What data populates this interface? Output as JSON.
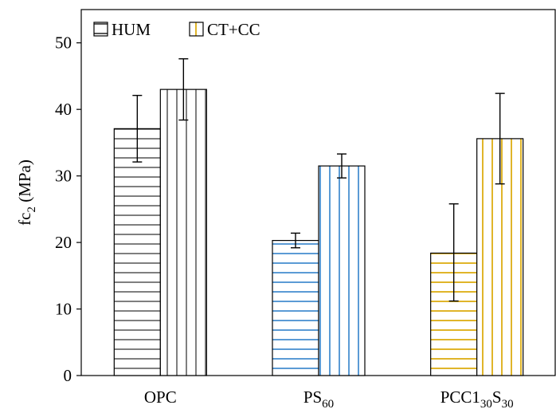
{
  "chart_data": {
    "type": "bar",
    "title": "",
    "xlabel": "",
    "ylabel": {
      "main": "fc",
      "sub": "2",
      "unit": " (MPa)"
    },
    "ylim": [
      0,
      55
    ],
    "yticks": [
      0,
      10,
      20,
      30,
      40,
      50
    ],
    "grid": false,
    "legend_position": "top-left",
    "categories": [
      {
        "label": "OPC",
        "parts": [
          {
            "text": "OPC",
            "sub": false
          }
        ]
      },
      {
        "label": "PS60",
        "parts": [
          {
            "text": "PS",
            "sub": false
          },
          {
            "text": "60",
            "sub": true
          }
        ]
      },
      {
        "label": "PCC130S30",
        "parts": [
          {
            "text": "PCC1",
            "sub": false
          },
          {
            "text": "30",
            "sub": true
          },
          {
            "text": "S",
            "sub": false
          },
          {
            "text": "30",
            "sub": true
          }
        ]
      }
    ],
    "series": [
      {
        "name": "HUM",
        "pattern": "horizontal",
        "values": [
          37.1,
          20.3,
          18.4
        ],
        "error_low": [
          32.1,
          19.2,
          11.2
        ],
        "error_high": [
          42.1,
          21.4,
          25.8
        ]
      },
      {
        "name": "CT+CC",
        "pattern": "vertical",
        "values": [
          43.0,
          31.5,
          35.6
        ],
        "error_low": [
          38.4,
          29.7,
          28.8
        ],
        "error_high": [
          47.6,
          33.3,
          42.4
        ]
      }
    ],
    "category_colors": [
      "#7f7f7f",
      "#5b9bd5",
      "#e0b52a"
    ],
    "legend_colors": [
      "#595959",
      "#e0b52a"
    ]
  }
}
